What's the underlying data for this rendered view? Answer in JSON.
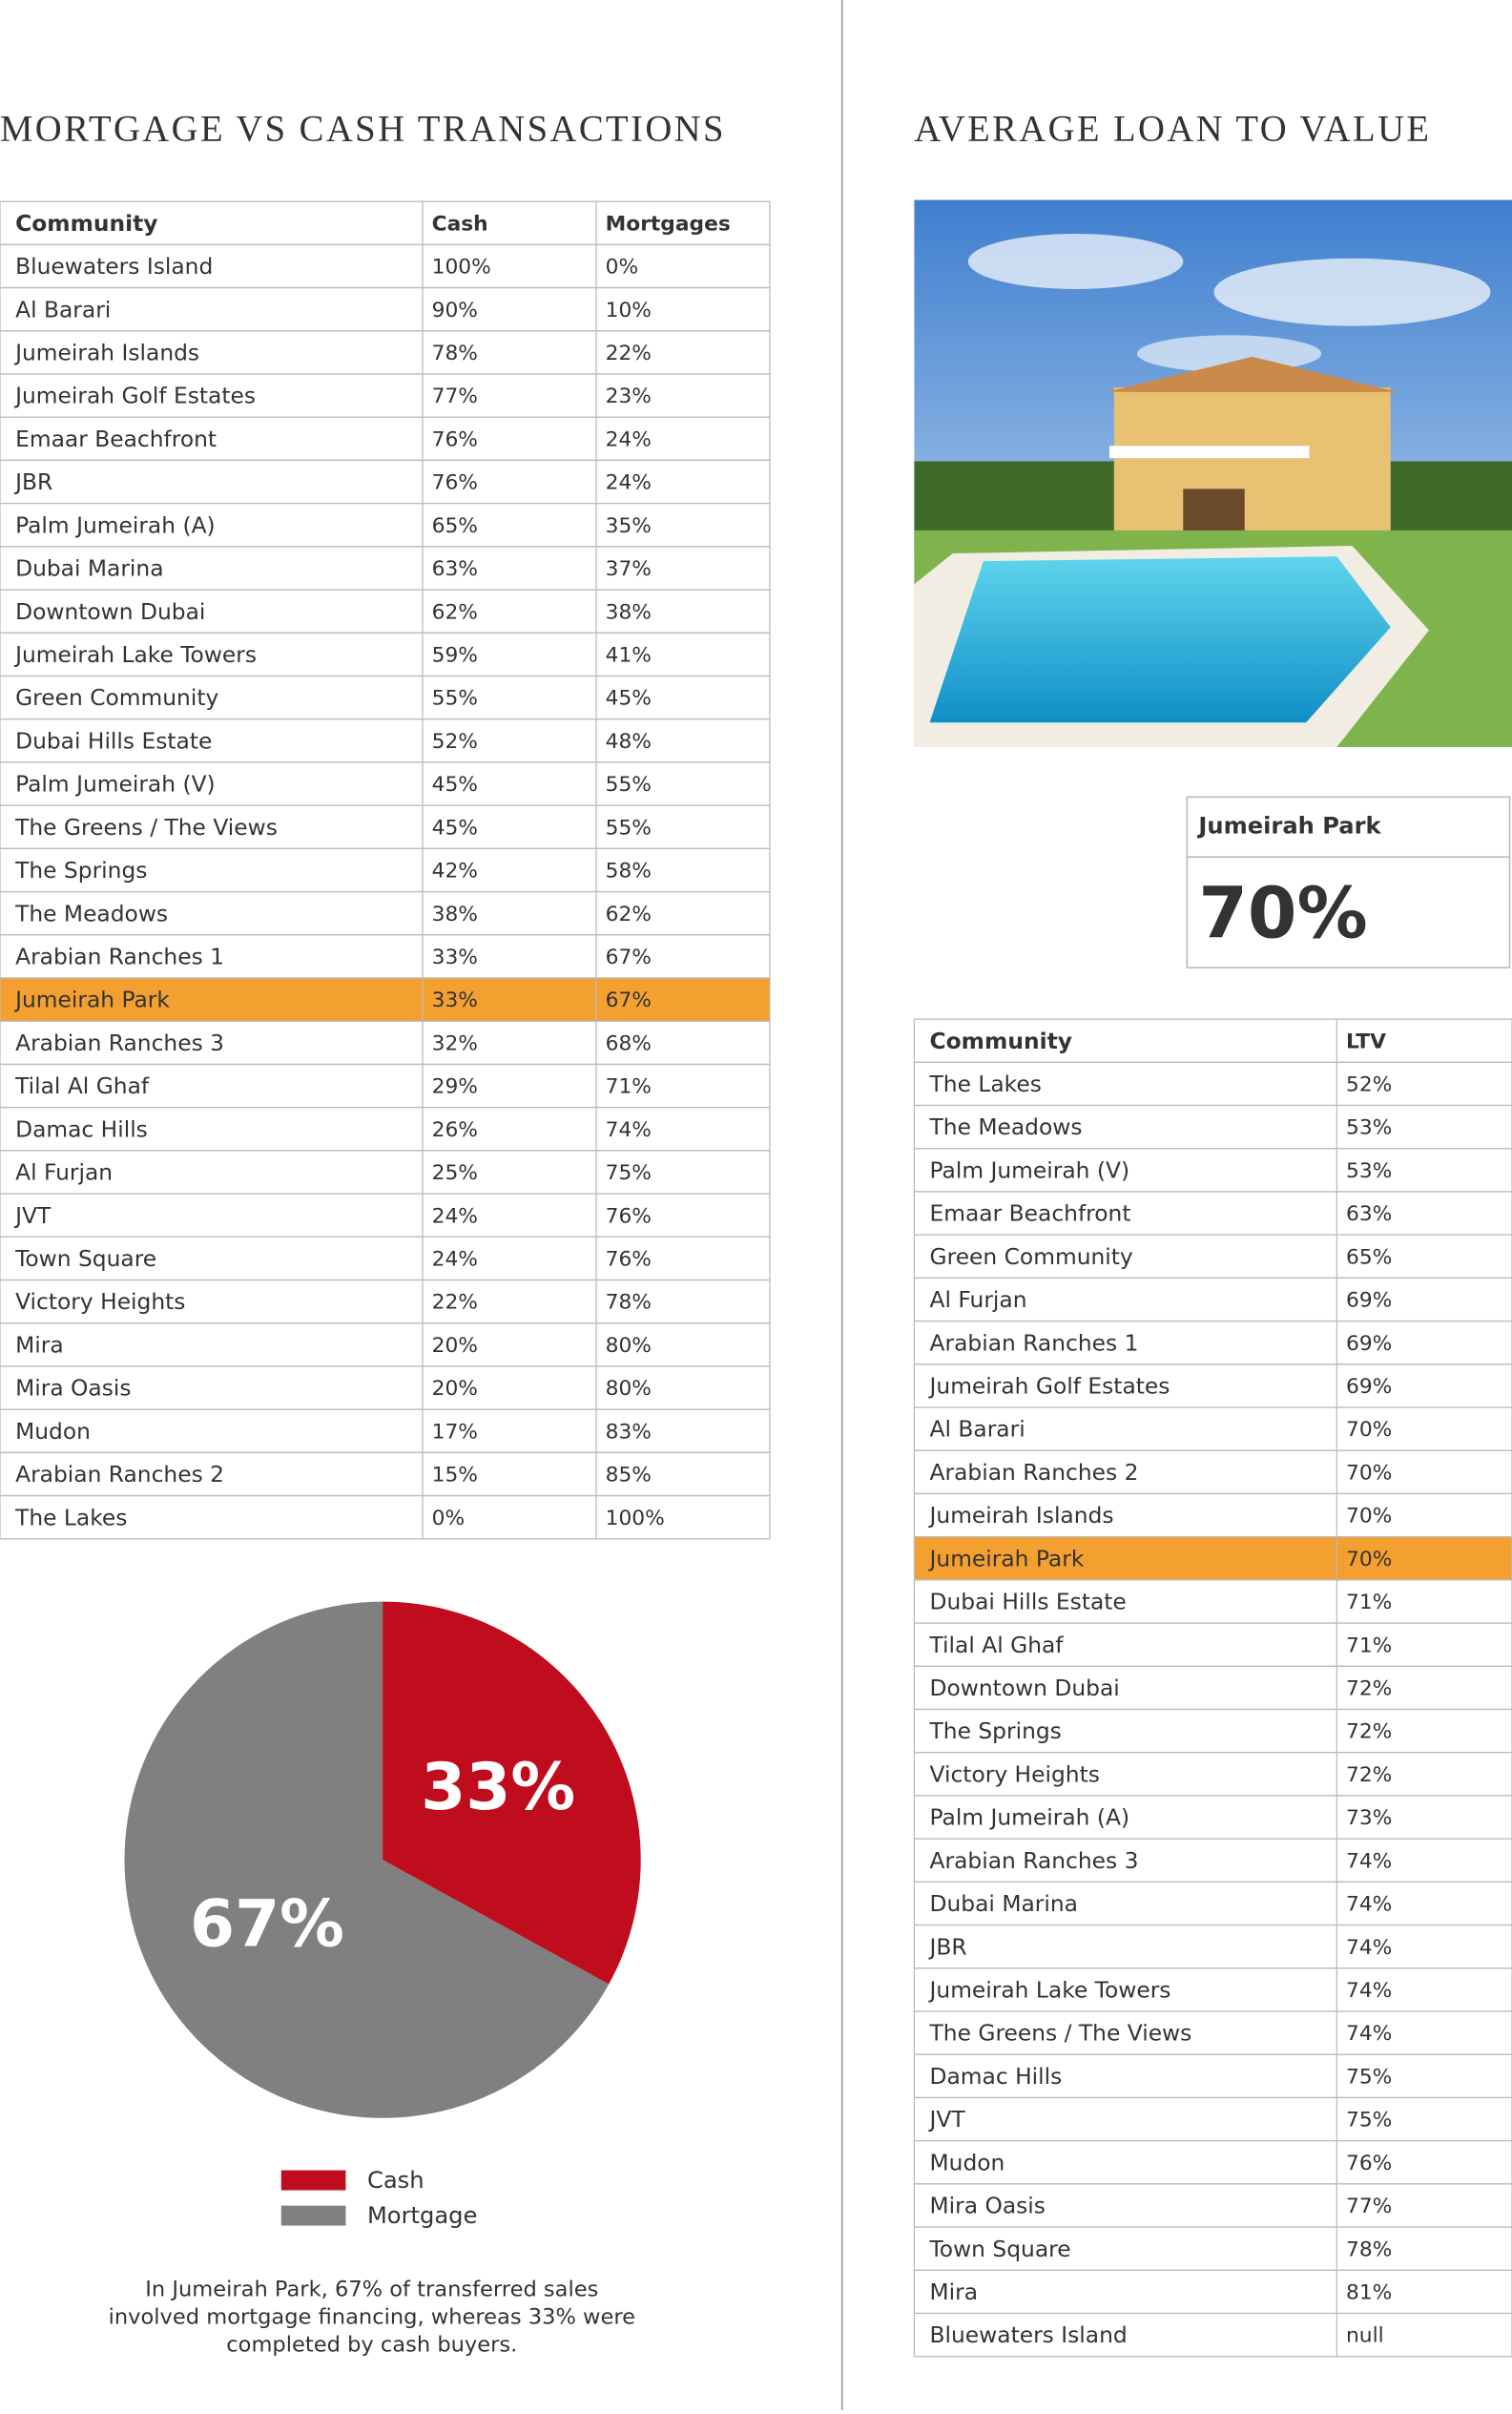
{
  "mortgage_cash": {
    "title": "MORTGAGE VS CASH TRANSACTIONS",
    "header": [
      "Community",
      "Cash",
      "Mortgages"
    ],
    "rows": [
      [
        "Bluewaters Island",
        "100%",
        "0%"
      ],
      [
        "Al Barari",
        "90%",
        "10%"
      ],
      [
        "Jumeirah Islands",
        "78%",
        "22%"
      ],
      [
        "Jumeirah Golf Estates",
        "77%",
        "23%"
      ],
      [
        "Emaar Beachfront",
        "76%",
        "24%"
      ],
      [
        "JBR",
        "76%",
        "24%"
      ],
      [
        "Palm Jumeirah (A)",
        "65%",
        "35%"
      ],
      [
        "Dubai Marina",
        "63%",
        "37%"
      ],
      [
        "Downtown Dubai",
        "62%",
        "38%"
      ],
      [
        "Jumeirah Lake Towers",
        "59%",
        "41%"
      ],
      [
        "Green Community",
        "55%",
        "45%"
      ],
      [
        "Dubai Hills Estate",
        "52%",
        "48%"
      ],
      [
        "Palm Jumeirah (V)",
        "45%",
        "55%"
      ],
      [
        "The Greens / The Views",
        "45%",
        "55%"
      ],
      [
        "The Springs",
        "42%",
        "58%"
      ],
      [
        "The Meadows",
        "38%",
        "62%"
      ],
      [
        "Arabian Ranches 1",
        "33%",
        "67%"
      ],
      [
        "Jumeirah Park",
        "33%",
        "67%"
      ],
      [
        "Arabian Ranches 3",
        "32%",
        "68%"
      ],
      [
        "Tilal Al Ghaf",
        "29%",
        "71%"
      ],
      [
        "Damac Hills",
        "26%",
        "74%"
      ],
      [
        "Al Furjan",
        "25%",
        "75%"
      ],
      [
        "JVT",
        "24%",
        "76%"
      ],
      [
        "Town Square",
        "24%",
        "76%"
      ],
      [
        "Victory Heights",
        "22%",
        "78%"
      ],
      [
        "Mira",
        "20%",
        "80%"
      ],
      [
        "Mira Oasis",
        "20%",
        "80%"
      ],
      [
        "Mudon",
        "17%",
        "83%"
      ],
      [
        "Arabian Ranches 2",
        "15%",
        "85%"
      ],
      [
        "The Lakes",
        "0%",
        "100%"
      ]
    ],
    "caption": [
      "In Jumeirah Park, 67% of transferred sales",
      "involved mortgage financing, whereas 33% were",
      "completed by cash buyers."
    ]
  },
  "chart_data": {
    "type": "pie",
    "categories": [
      "Cash",
      "Mortgage"
    ],
    "values": [
      33,
      67
    ],
    "value_labels": [
      "33%",
      "67%"
    ],
    "colors": [
      "#c00d1e",
      "#808080"
    ]
  },
  "ltv": {
    "title": "AVERAGE LOAN TO VALUE",
    "featured": {
      "community": "Jumeirah Park",
      "value": "70%"
    },
    "header": [
      "Community",
      "LTV"
    ],
    "rows": [
      [
        "The Lakes",
        "52%"
      ],
      [
        "The Meadows",
        "53%"
      ],
      [
        "Palm Jumeirah (V)",
        "53%"
      ],
      [
        "Emaar Beachfront",
        "63%"
      ],
      [
        "Green Community",
        "65%"
      ],
      [
        "Al Furjan",
        "69%"
      ],
      [
        "Arabian Ranches 1",
        "69%"
      ],
      [
        "Jumeirah Golf Estates",
        "69%"
      ],
      [
        "Al Barari",
        "70%"
      ],
      [
        "Arabian Ranches 2",
        "70%"
      ],
      [
        "Jumeirah Islands",
        "70%"
      ],
      [
        "Jumeirah Park",
        "70%"
      ],
      [
        "Dubai Hills Estate",
        "71%"
      ],
      [
        "Tilal Al Ghaf",
        "71%"
      ],
      [
        "Downtown Dubai",
        "72%"
      ],
      [
        "The Springs",
        "72%"
      ],
      [
        "Victory Heights",
        "72%"
      ],
      [
        "Palm Jumeirah (A)",
        "73%"
      ],
      [
        "Arabian Ranches 3",
        "74%"
      ],
      [
        "Dubai Marina",
        "74%"
      ],
      [
        "JBR",
        "74%"
      ],
      [
        "Jumeirah Lake Towers",
        "74%"
      ],
      [
        "The Greens / The Views",
        "74%"
      ],
      [
        "Damac Hills",
        "75%"
      ],
      [
        "JVT",
        "75%"
      ],
      [
        "Mudon",
        "76%"
      ],
      [
        "Mira Oasis",
        "77%"
      ],
      [
        "Town Square",
        "78%"
      ],
      [
        "Mira",
        "81%"
      ],
      [
        "Bluewaters Island",
        "null"
      ]
    ]
  }
}
